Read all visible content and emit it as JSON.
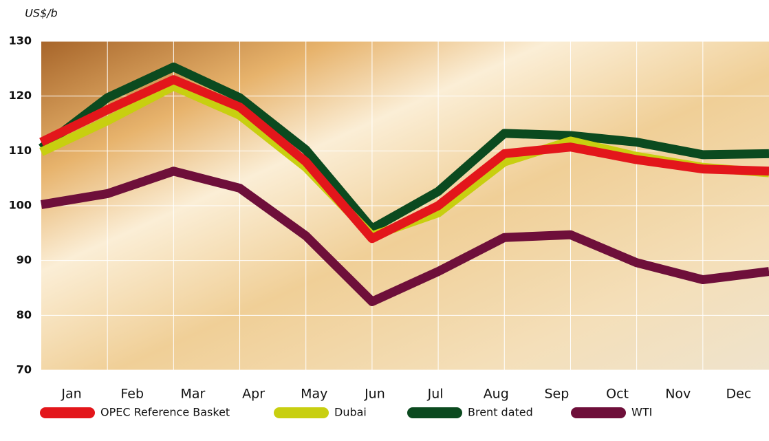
{
  "chart_data": {
    "type": "line",
    "y_label": "US$/b",
    "categories": [
      "Jan",
      "Feb",
      "Mar",
      "Apr",
      "May",
      "Jun",
      "Jul",
      "Aug",
      "Sep",
      "Oct",
      "Nov",
      "Dec"
    ],
    "series": [
      {
        "name": "OPEC Reference Basket",
        "color": "#e3161b",
        "values": [
          111.6,
          117.5,
          123,
          118,
          108,
          94,
          100,
          109.5,
          110.7,
          108.4,
          106.7,
          106.3
        ]
      },
      {
        "name": "Dubai",
        "color": "#c8cf10",
        "values": [
          109.8,
          115.5,
          121.8,
          116.5,
          107,
          94.5,
          98.7,
          108,
          111.8,
          109,
          107,
          106
        ]
      },
      {
        "name": "Brent dated",
        "color": "#0b4a1f",
        "values": [
          110.5,
          119.7,
          125.3,
          119.7,
          110.2,
          95.8,
          102.6,
          113.2,
          112.8,
          111.6,
          109.3,
          109.5
        ]
      },
      {
        "name": "WTI",
        "color": "#6e0f3a",
        "values": [
          100.2,
          102.2,
          106.3,
          103.2,
          94.5,
          82.5,
          88,
          94.2,
          94.7,
          89.6,
          86.5,
          88
        ]
      }
    ],
    "ylim": [
      70,
      130
    ],
    "yticks": [
      70,
      80,
      90,
      100,
      110,
      120,
      130
    ],
    "grid": true
  }
}
